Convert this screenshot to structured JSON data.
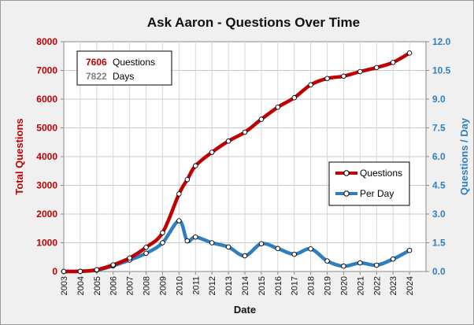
{
  "chart_data": {
    "type": "line",
    "title": "Ask Aaron - Questions  Over Time",
    "xlabel": "Date",
    "ylabel_left": "Total Questions",
    "ylabel_right": "Questions / Day",
    "categories": [
      "2003",
      "2004",
      "2005",
      "2006",
      "2007",
      "2008",
      "2009",
      "2010",
      "2011",
      "2012",
      "2013",
      "2014",
      "2015",
      "2016",
      "2017",
      "2018",
      "2019",
      "2020",
      "2021",
      "2022",
      "2023",
      "2024"
    ],
    "xlim": [
      2003,
      2025
    ],
    "ylim_left": [
      0,
      8000
    ],
    "ylim_right": [
      0,
      12
    ],
    "yticks_left": [
      "0",
      "1000",
      "2000",
      "3000",
      "4000",
      "5000",
      "6000",
      "7000",
      "8000"
    ],
    "yticks_right": [
      "0.0",
      "1.5",
      "3.0",
      "4.5",
      "6.0",
      "7.5",
      "9.0",
      "10.5",
      "12.0"
    ],
    "grid": true,
    "legend_position": "right",
    "series": [
      {
        "name": "Questions",
        "axis": "left",
        "color": "#c00000",
        "points": [
          [
            2003.0,
            0
          ],
          [
            2004.0,
            5
          ],
          [
            2005.0,
            60
          ],
          [
            2006.0,
            230
          ],
          [
            2007.0,
            470
          ],
          [
            2008.0,
            840
          ],
          [
            2009.0,
            1350
          ],
          [
            2010.0,
            2700
          ],
          [
            2010.5,
            3200
          ],
          [
            2011.0,
            3680
          ],
          [
            2012.0,
            4150
          ],
          [
            2013.0,
            4540
          ],
          [
            2014.0,
            4850
          ],
          [
            2015.0,
            5300
          ],
          [
            2016.0,
            5720
          ],
          [
            2017.0,
            6050
          ],
          [
            2018.0,
            6500
          ],
          [
            2019.0,
            6720
          ],
          [
            2020.0,
            6800
          ],
          [
            2021.0,
            6960
          ],
          [
            2022.0,
            7100
          ],
          [
            2023.0,
            7280
          ],
          [
            2024.0,
            7606
          ]
        ]
      },
      {
        "name": "Per Day",
        "axis": "right",
        "color": "#2f7fbf",
        "points": [
          [
            2003.0,
            0.0
          ],
          [
            2004.0,
            0.01
          ],
          [
            2005.0,
            0.07
          ],
          [
            2006.0,
            0.3
          ],
          [
            2007.0,
            0.6
          ],
          [
            2008.0,
            0.95
          ],
          [
            2009.0,
            1.5
          ],
          [
            2010.0,
            2.65
          ],
          [
            2010.5,
            1.6
          ],
          [
            2011.0,
            1.8
          ],
          [
            2012.0,
            1.5
          ],
          [
            2013.0,
            1.28
          ],
          [
            2014.0,
            0.82
          ],
          [
            2015.0,
            1.45
          ],
          [
            2016.0,
            1.2
          ],
          [
            2017.0,
            0.9
          ],
          [
            2018.0,
            1.18
          ],
          [
            2019.0,
            0.55
          ],
          [
            2020.0,
            0.28
          ],
          [
            2021.0,
            0.45
          ],
          [
            2022.0,
            0.33
          ],
          [
            2023.0,
            0.65
          ],
          [
            2024.0,
            1.1
          ]
        ]
      }
    ]
  },
  "info_box": {
    "questions_count": "7606",
    "questions_label": "Questions",
    "days_count": "7822",
    "days_label": "Days",
    "questions_color": "#c00000",
    "days_color": "#808080"
  }
}
